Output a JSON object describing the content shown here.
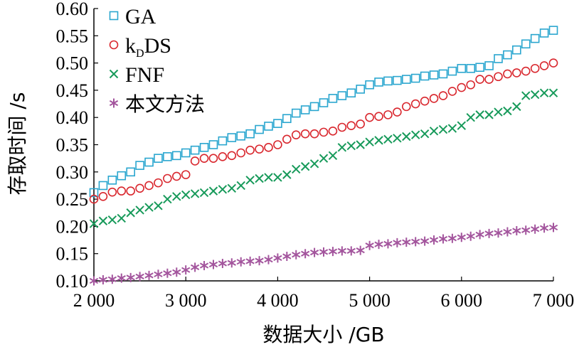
{
  "chart_data": {
    "type": "scatter",
    "xlabel": "数据大小 /GB",
    "ylabel": "存取时间 /s",
    "xlim": [
      2000,
      7000
    ],
    "ylim": [
      0.1,
      0.6
    ],
    "x_ticks": [
      2000,
      3000,
      4000,
      5000,
      6000,
      7000
    ],
    "x_tick_labels": [
      "2 000",
      "3 000",
      "4 000",
      "5 000",
      "6 000",
      "7 000"
    ],
    "y_ticks": [
      0.1,
      0.15,
      0.2,
      0.25,
      0.3,
      0.35,
      0.4,
      0.45,
      0.5,
      0.55,
      0.6
    ],
    "y_tick_labels": [
      "0.10",
      "0.15",
      "0.20",
      "0.25",
      "0.30",
      "0.35",
      "0.40",
      "0.45",
      "0.50",
      "0.55",
      "0.60"
    ],
    "grid": false,
    "legend_position": "top-left",
    "legend": [
      {
        "label": "GA",
        "label_main": "GA",
        "label_sub": "",
        "label_tail": "",
        "marker": "square",
        "color": "#2aa6cf"
      },
      {
        "label": "kDDS",
        "label_main": "k",
        "label_sub": "D",
        "label_tail": "DS",
        "marker": "circle",
        "color": "#d9272e"
      },
      {
        "label": "FNF",
        "label_main": "FNF",
        "label_sub": "",
        "label_tail": "",
        "marker": "x",
        "color": "#179a5a"
      },
      {
        "label": "本文方法",
        "label_main": "本文方法",
        "label_sub": "",
        "label_tail": "",
        "marker": "asterisk",
        "color": "#a3559d"
      }
    ],
    "x": [
      2000,
      2100,
      2200,
      2300,
      2400,
      2500,
      2600,
      2700,
      2800,
      2900,
      3000,
      3100,
      3200,
      3300,
      3400,
      3500,
      3600,
      3700,
      3800,
      3900,
      4000,
      4100,
      4200,
      4300,
      4400,
      4500,
      4600,
      4700,
      4800,
      4900,
      5000,
      5100,
      5200,
      5300,
      5400,
      5500,
      5600,
      5700,
      5800,
      5900,
      6000,
      6100,
      6200,
      6300,
      6400,
      6500,
      6600,
      6700,
      6800,
      6900,
      7000
    ],
    "series": [
      {
        "name": "GA",
        "values": [
          0.262,
          0.275,
          0.285,
          0.293,
          0.3,
          0.312,
          0.318,
          0.325,
          0.328,
          0.33,
          0.335,
          0.34,
          0.345,
          0.35,
          0.357,
          0.363,
          0.366,
          0.37,
          0.378,
          0.384,
          0.389,
          0.398,
          0.408,
          0.414,
          0.42,
          0.427,
          0.435,
          0.44,
          0.445,
          0.452,
          0.46,
          0.465,
          0.467,
          0.468,
          0.47,
          0.472,
          0.476,
          0.478,
          0.48,
          0.485,
          0.49,
          0.49,
          0.492,
          0.495,
          0.508,
          0.515,
          0.524,
          0.535,
          0.545,
          0.555,
          0.56
        ]
      },
      {
        "name": "kDDS",
        "values": [
          0.25,
          0.255,
          0.263,
          0.265,
          0.265,
          0.27,
          0.275,
          0.28,
          0.288,
          0.292,
          0.295,
          0.32,
          0.325,
          0.325,
          0.328,
          0.33,
          0.335,
          0.34,
          0.342,
          0.345,
          0.35,
          0.36,
          0.368,
          0.37,
          0.37,
          0.373,
          0.375,
          0.382,
          0.385,
          0.388,
          0.4,
          0.402,
          0.405,
          0.41,
          0.42,
          0.425,
          0.43,
          0.435,
          0.44,
          0.448,
          0.455,
          0.46,
          0.47,
          0.47,
          0.475,
          0.48,
          0.482,
          0.485,
          0.49,
          0.495,
          0.5
        ]
      },
      {
        "name": "FNF",
        "values": [
          0.205,
          0.21,
          0.212,
          0.215,
          0.225,
          0.23,
          0.235,
          0.238,
          0.25,
          0.255,
          0.258,
          0.26,
          0.262,
          0.265,
          0.268,
          0.27,
          0.275,
          0.285,
          0.288,
          0.29,
          0.29,
          0.295,
          0.305,
          0.31,
          0.315,
          0.325,
          0.33,
          0.345,
          0.348,
          0.35,
          0.355,
          0.358,
          0.36,
          0.362,
          0.365,
          0.368,
          0.37,
          0.375,
          0.378,
          0.38,
          0.385,
          0.4,
          0.405,
          0.405,
          0.41,
          0.412,
          0.42,
          0.44,
          0.442,
          0.445,
          0.445
        ]
      },
      {
        "name": "本文方法",
        "values": [
          0.1,
          0.102,
          0.103,
          0.105,
          0.106,
          0.108,
          0.11,
          0.112,
          0.114,
          0.116,
          0.12,
          0.125,
          0.128,
          0.13,
          0.132,
          0.133,
          0.135,
          0.136,
          0.137,
          0.139,
          0.142,
          0.145,
          0.148,
          0.15,
          0.152,
          0.153,
          0.154,
          0.155,
          0.155,
          0.156,
          0.165,
          0.167,
          0.168,
          0.17,
          0.171,
          0.172,
          0.173,
          0.175,
          0.177,
          0.178,
          0.18,
          0.182,
          0.185,
          0.187,
          0.188,
          0.19,
          0.192,
          0.193,
          0.195,
          0.197,
          0.198
        ]
      }
    ]
  }
}
